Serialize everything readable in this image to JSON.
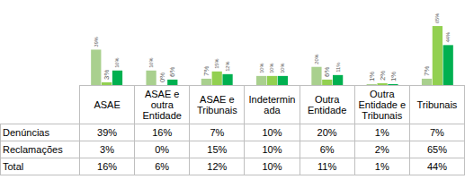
{
  "chart_data": {
    "type": "bar",
    "categories": [
      "ASAE",
      "ASAE e outra Entidade",
      "ASAE e Tribunais",
      "Indeterminada",
      "Outra Entidade",
      "Outra Entidade e Tribunais",
      "Tribunais"
    ],
    "series": [
      {
        "name": "Denúncias",
        "color": "#a9d08e",
        "values": [
          39,
          16,
          7,
          10,
          20,
          1,
          7
        ],
        "value_labels": [
          "39%",
          "16%",
          "7%",
          "10%",
          "20%",
          "1%",
          "7%"
        ]
      },
      {
        "name": "Reclamações",
        "color": "#92d050",
        "values": [
          3,
          0,
          15,
          10,
          6,
          2,
          65
        ],
        "value_labels": [
          "3%",
          "0%",
          "15%",
          "10%",
          "6%",
          "2%",
          "65%"
        ]
      },
      {
        "name": "Total",
        "color": "#00b050",
        "values": [
          16,
          6,
          12,
          10,
          11,
          1,
          44
        ],
        "value_labels": [
          "16%",
          "6%",
          "12%",
          "10%",
          "11%",
          "1%",
          "44%"
        ]
      }
    ],
    "ylim": [
      0,
      70
    ],
    "data_labels": true,
    "tick_labels": false,
    "grid": false
  }
}
